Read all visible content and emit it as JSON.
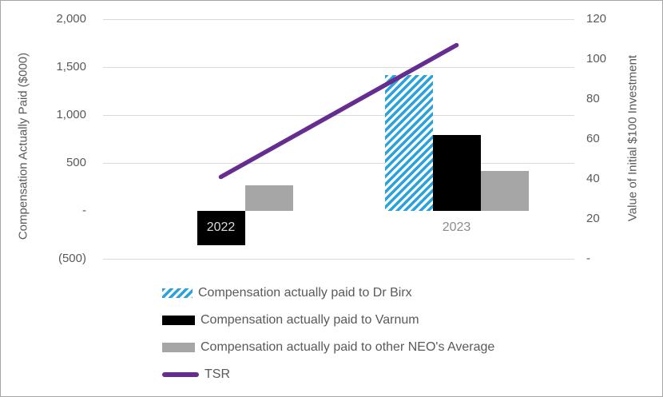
{
  "chart_data": {
    "type": "bar-line-combo",
    "categories": [
      "2022",
      "2023"
    ],
    "category_label_colors": [
      "#dcdcdc",
      "#8c8c8c"
    ],
    "series": [
      {
        "name": "Compensation actually paid to Dr Birx",
        "type": "bar",
        "axis": "left",
        "fill": "hatched",
        "color": "#2aa2db",
        "values": [
          0,
          1417
        ]
      },
      {
        "name": "Compensation actually paid to Varnum",
        "type": "bar",
        "axis": "left",
        "fill": "solid",
        "color": "#000000",
        "values": [
          -358,
          792
        ]
      },
      {
        "name": "Compensation actually paid to other NEO's Average",
        "type": "bar",
        "axis": "left",
        "fill": "solid",
        "color": "#a6a6a6",
        "values": [
          267,
          417
        ]
      },
      {
        "name": "TSR",
        "type": "line",
        "axis": "right",
        "color": "#662d91",
        "values": [
          41,
          107
        ]
      }
    ],
    "left_axis": {
      "title": "Compensation Actually Paid ($000)",
      "range": [
        -500,
        2000
      ],
      "ticks": [
        {
          "value": 2000,
          "label": "2,000"
        },
        {
          "value": 1500,
          "label": "1,500"
        },
        {
          "value": 1000,
          "label": "1,000"
        },
        {
          "value": 500,
          "label": "500"
        },
        {
          "value": 0,
          "label": "-"
        },
        {
          "value": -500,
          "label": "(500)"
        }
      ]
    },
    "right_axis": {
      "title": "Value of Initial $100 Investment",
      "range": [
        0,
        120
      ],
      "ticks": [
        {
          "value": 120,
          "label": "120"
        },
        {
          "value": 100,
          "label": "100"
        },
        {
          "value": 80,
          "label": "80"
        },
        {
          "value": 60,
          "label": "60"
        },
        {
          "value": 40,
          "label": "40"
        },
        {
          "value": 20,
          "label": "20"
        },
        {
          "value": 0,
          "label": "-"
        }
      ]
    },
    "gridline_values": [
      2000,
      1500,
      1000,
      500,
      -500
    ],
    "grid_color": "#d9d9d9",
    "axis_text_color": "#595959",
    "legend_position": "bottom"
  }
}
